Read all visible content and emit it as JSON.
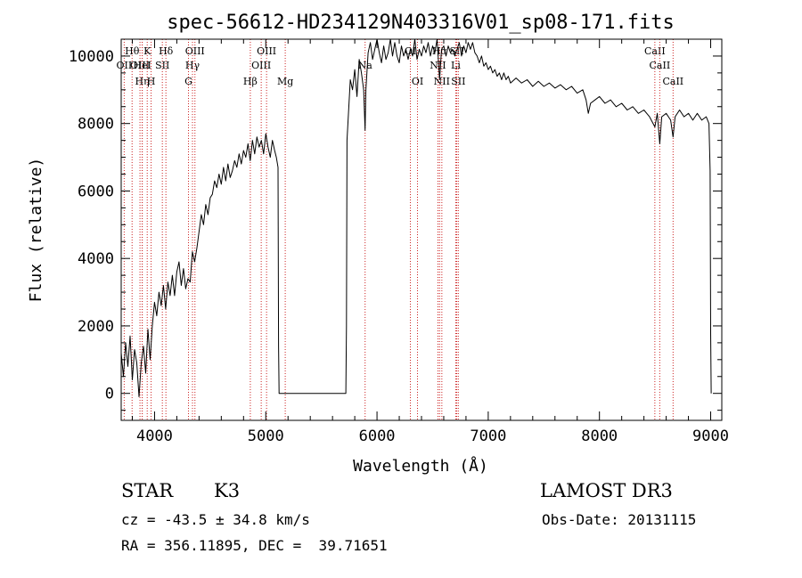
{
  "chart_data": {
    "type": "line",
    "title": "spec-56612-HD234129N403316V01_sp08-171.fits",
    "xlabel": "Wavelength (Å)",
    "ylabel": "Flux (relative)",
    "xlim": [
      3700,
      9100
    ],
    "ylim": [
      -800,
      10500
    ],
    "xticks": [
      4000,
      5000,
      6000,
      7000,
      8000,
      9000
    ],
    "yticks": [
      0,
      2000,
      4000,
      6000,
      8000,
      10000
    ],
    "grid": false,
    "series": [
      {
        "color": "#000000",
        "points": [
          [
            3700,
            1200
          ],
          [
            3720,
            500
          ],
          [
            3740,
            1500
          ],
          [
            3760,
            800
          ],
          [
            3780,
            1700
          ],
          [
            3800,
            400
          ],
          [
            3820,
            1300
          ],
          [
            3840,
            900
          ],
          [
            3860,
            -100
          ],
          [
            3880,
            900
          ],
          [
            3900,
            1400
          ],
          [
            3920,
            600
          ],
          [
            3940,
            1900
          ],
          [
            3960,
            1000
          ],
          [
            3980,
            2000
          ],
          [
            4000,
            2700
          ],
          [
            4020,
            2300
          ],
          [
            4040,
            3000
          ],
          [
            4060,
            2600
          ],
          [
            4080,
            3200
          ],
          [
            4100,
            2500
          ],
          [
            4120,
            3300
          ],
          [
            4140,
            2900
          ],
          [
            4160,
            3500
          ],
          [
            4180,
            2900
          ],
          [
            4200,
            3600
          ],
          [
            4220,
            3900
          ],
          [
            4240,
            3200
          ],
          [
            4260,
            3700
          ],
          [
            4280,
            3100
          ],
          [
            4300,
            3400
          ],
          [
            4320,
            3300
          ],
          [
            4340,
            4200
          ],
          [
            4360,
            3900
          ],
          [
            4380,
            4300
          ],
          [
            4400,
            4800
          ],
          [
            4420,
            5300
          ],
          [
            4440,
            5000
          ],
          [
            4460,
            5600
          ],
          [
            4480,
            5300
          ],
          [
            4500,
            5800
          ],
          [
            4520,
            5900
          ],
          [
            4540,
            6300
          ],
          [
            4560,
            6100
          ],
          [
            4580,
            6500
          ],
          [
            4600,
            6200
          ],
          [
            4620,
            6700
          ],
          [
            4640,
            6300
          ],
          [
            4660,
            6800
          ],
          [
            4680,
            6400
          ],
          [
            4700,
            6600
          ],
          [
            4720,
            6900
          ],
          [
            4740,
            6700
          ],
          [
            4760,
            7100
          ],
          [
            4780,
            6800
          ],
          [
            4800,
            7200
          ],
          [
            4820,
            7000
          ],
          [
            4840,
            7400
          ],
          [
            4860,
            6900
          ],
          [
            4880,
            7500
          ],
          [
            4900,
            7100
          ],
          [
            4920,
            7600
          ],
          [
            4940,
            7300
          ],
          [
            4960,
            7500
          ],
          [
            4980,
            7100
          ],
          [
            5000,
            7700
          ],
          [
            5020,
            7300
          ],
          [
            5040,
            7000
          ],
          [
            5060,
            7500
          ],
          [
            5080,
            7200
          ],
          [
            5095,
            7000
          ],
          [
            5110,
            6700
          ],
          [
            5115,
            1400
          ],
          [
            5120,
            0
          ],
          [
            5400,
            0
          ],
          [
            5600,
            0
          ],
          [
            5720,
            0
          ],
          [
            5725,
            2000
          ],
          [
            5730,
            7500
          ],
          [
            5760,
            9300
          ],
          [
            5780,
            9000
          ],
          [
            5800,
            9600
          ],
          [
            5820,
            8800
          ],
          [
            5840,
            9900
          ],
          [
            5860,
            9500
          ],
          [
            5880,
            9000
          ],
          [
            5893,
            7800
          ],
          [
            5900,
            9000
          ],
          [
            5920,
            10100
          ],
          [
            5940,
            10400
          ],
          [
            5960,
            9900
          ],
          [
            5980,
            10200
          ],
          [
            6000,
            10500
          ],
          [
            6020,
            10100
          ],
          [
            6040,
            9800
          ],
          [
            6060,
            10300
          ],
          [
            6080,
            9900
          ],
          [
            6100,
            10100
          ],
          [
            6120,
            10500
          ],
          [
            6140,
            10000
          ],
          [
            6160,
            10400
          ],
          [
            6180,
            10000
          ],
          [
            6200,
            9800
          ],
          [
            6220,
            10300
          ],
          [
            6240,
            10000
          ],
          [
            6260,
            10200
          ],
          [
            6280,
            9900
          ],
          [
            6300,
            10200
          ],
          [
            6320,
            10000
          ],
          [
            6340,
            10500
          ],
          [
            6360,
            9900
          ],
          [
            6380,
            10200
          ],
          [
            6400,
            10000
          ],
          [
            6420,
            10300
          ],
          [
            6440,
            10100
          ],
          [
            6460,
            10400
          ],
          [
            6480,
            10000
          ],
          [
            6500,
            10300
          ],
          [
            6520,
            10100
          ],
          [
            6540,
            10500
          ],
          [
            6563,
            9300
          ],
          [
            6580,
            10200
          ],
          [
            6600,
            10300
          ],
          [
            6620,
            10000
          ],
          [
            6640,
            10300
          ],
          [
            6660,
            10100
          ],
          [
            6680,
            10200
          ],
          [
            6700,
            10000
          ],
          [
            6720,
            10200
          ],
          [
            6740,
            10400
          ],
          [
            6760,
            10000
          ],
          [
            6780,
            10300
          ],
          [
            6800,
            10100
          ],
          [
            6820,
            10400
          ],
          [
            6840,
            10200
          ],
          [
            6860,
            10400
          ],
          [
            6880,
            10100
          ],
          [
            6900,
            10000
          ],
          [
            6920,
            9800
          ],
          [
            6940,
            10000
          ],
          [
            6960,
            9700
          ],
          [
            6980,
            9800
          ],
          [
            7000,
            9600
          ],
          [
            7020,
            9700
          ],
          [
            7040,
            9500
          ],
          [
            7060,
            9600
          ],
          [
            7080,
            9400
          ],
          [
            7100,
            9500
          ],
          [
            7120,
            9300
          ],
          [
            7140,
            9500
          ],
          [
            7160,
            9300
          ],
          [
            7180,
            9400
          ],
          [
            7200,
            9200
          ],
          [
            7250,
            9350
          ],
          [
            7300,
            9200
          ],
          [
            7350,
            9300
          ],
          [
            7400,
            9100
          ],
          [
            7450,
            9250
          ],
          [
            7500,
            9100
          ],
          [
            7550,
            9200
          ],
          [
            7600,
            9050
          ],
          [
            7650,
            9150
          ],
          [
            7700,
            9000
          ],
          [
            7750,
            9100
          ],
          [
            7800,
            8900
          ],
          [
            7850,
            9000
          ],
          [
            7880,
            8700
          ],
          [
            7900,
            8300
          ],
          [
            7920,
            8600
          ],
          [
            7960,
            8700
          ],
          [
            8000,
            8800
          ],
          [
            8050,
            8600
          ],
          [
            8100,
            8700
          ],
          [
            8150,
            8500
          ],
          [
            8200,
            8600
          ],
          [
            8250,
            8400
          ],
          [
            8300,
            8500
          ],
          [
            8350,
            8300
          ],
          [
            8400,
            8400
          ],
          [
            8450,
            8200
          ],
          [
            8498,
            7900
          ],
          [
            8520,
            8300
          ],
          [
            8542,
            7400
          ],
          [
            8560,
            8200
          ],
          [
            8600,
            8300
          ],
          [
            8640,
            8100
          ],
          [
            8662,
            7600
          ],
          [
            8680,
            8200
          ],
          [
            8720,
            8400
          ],
          [
            8760,
            8200
          ],
          [
            8800,
            8300
          ],
          [
            8840,
            8100
          ],
          [
            8880,
            8300
          ],
          [
            8920,
            8100
          ],
          [
            8960,
            8200
          ],
          [
            8985,
            8000
          ],
          [
            8995,
            6600
          ],
          [
            9000,
            1800
          ],
          [
            9005,
            0
          ]
        ]
      }
    ],
    "line_markers": [
      {
        "label": "OII",
        "x": 3727,
        "row": 2
      },
      {
        "label": "Hθ",
        "x": 3798,
        "row": 1
      },
      {
        "label": "OIII",
        "x": 3869,
        "row": 2
      },
      {
        "label": "HeI",
        "x": 3889,
        "row": 2
      },
      {
        "label": "Hη",
        "x": 3889,
        "row": 3
      },
      {
        "label": "K",
        "x": 3934,
        "row": 1
      },
      {
        "label": "H",
        "x": 3969,
        "row": 3
      },
      {
        "label": "SII",
        "x": 4070,
        "row": 2
      },
      {
        "label": "Hδ",
        "x": 4102,
        "row": 1
      },
      {
        "label": "G",
        "x": 4305,
        "row": 3
      },
      {
        "label": "Hγ",
        "x": 4341,
        "row": 2
      },
      {
        "label": "OIII",
        "x": 4363,
        "row": 1
      },
      {
        "label": "Hβ",
        "x": 4861,
        "row": 3
      },
      {
        "label": "OIII",
        "x": 4959,
        "row": 2
      },
      {
        "label": "OIII",
        "x": 5007,
        "row": 1
      },
      {
        "label": "Mg",
        "x": 5175,
        "row": 3
      },
      {
        "label": "Na",
        "x": 5893,
        "row": 2
      },
      {
        "label": "OI",
        "x": 6300,
        "row": 1
      },
      {
        "label": "OI",
        "x": 6364,
        "row": 3
      },
      {
        "label": "NII",
        "x": 6548,
        "row": 2
      },
      {
        "label": "Hα",
        "x": 6563,
        "row": 1
      },
      {
        "label": "NII",
        "x": 6583,
        "row": 3
      },
      {
        "label": "SII",
        "x": 6717,
        "row": 1
      },
      {
        "label": "SII",
        "x": 6731,
        "row": 3
      },
      {
        "label": "Li",
        "x": 6708,
        "row": 2
      },
      {
        "label": "CaII",
        "x": 8498,
        "row": 1
      },
      {
        "label": "CaII",
        "x": 8542,
        "row": 2
      },
      {
        "label": "CaII",
        "x": 8662,
        "row": 3
      }
    ]
  },
  "info": {
    "object_class": "STAR",
    "subclass": "K3",
    "survey": "LAMOST DR3",
    "redshift": "cz = -43.5 ± 34.8 km/s",
    "obs_date": "Obs-Date: 20131115",
    "coords": "RA = 356.11895, DEC =  39.71651"
  }
}
